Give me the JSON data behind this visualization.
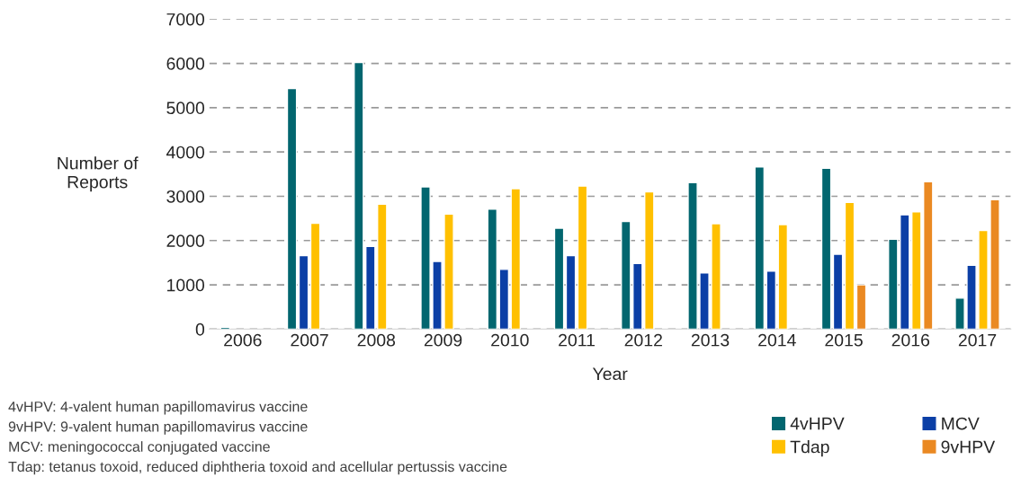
{
  "chart_data": {
    "type": "bar",
    "xlabel": "Year",
    "ylabel": "Number of\nReports",
    "categories": [
      "2006",
      "2007",
      "2008",
      "2009",
      "2010",
      "2011",
      "2012",
      "2013",
      "2014",
      "2015",
      "2016",
      "2017"
    ],
    "series": [
      {
        "name": "4vHPV",
        "color": "#02666f",
        "values": [
          40,
          5430,
          6020,
          3210,
          2710,
          2280,
          2430,
          3310,
          3660,
          3630,
          2030,
          700
        ]
      },
      {
        "name": "MCV",
        "color": "#0b3fa6",
        "values": [
          null,
          1660,
          1870,
          1530,
          1350,
          1660,
          1480,
          1270,
          1310,
          1690,
          2580,
          1440
        ]
      },
      {
        "name": "Tdap",
        "color": "#ffc000",
        "values": [
          null,
          2390,
          2820,
          2600,
          3170,
          3230,
          3100,
          2380,
          2360,
          2860,
          2650,
          2230
        ]
      },
      {
        "name": "9vHPV",
        "color": "#ea8922",
        "values": [
          null,
          null,
          null,
          null,
          null,
          null,
          null,
          null,
          null,
          1000,
          3330,
          2920
        ]
      }
    ],
    "ylim": [
      0,
      7000
    ],
    "yticks": [
      0,
      1000,
      2000,
      3000,
      4000,
      5000,
      6000,
      7000
    ],
    "grid": "y",
    "legend": "bottom right",
    "annotations": [
      "4vHPV: 4-valent human papillomavirus vaccine",
      "9vHPV: 9-valent human papillomavirus vaccine",
      "MCV: meningococcal conjugated vaccine",
      "Tdap: tetanus toxoid, reduced diphtheria toxoid and acellular pertussis vaccine"
    ]
  }
}
